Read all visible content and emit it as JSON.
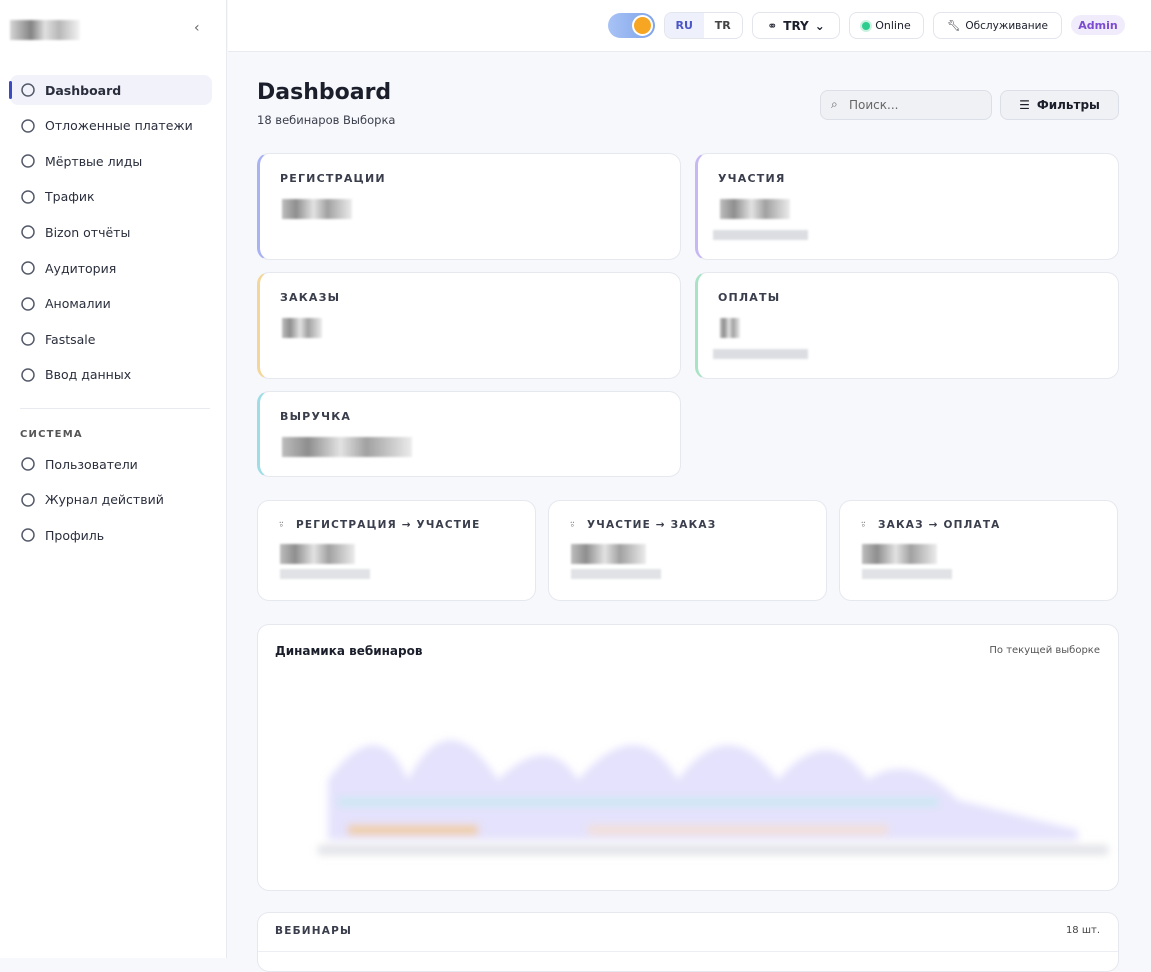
{
  "sidebar": {
    "nav": [
      "Dashboard",
      "Отложенные платежи",
      "Мёртвые лиды",
      "Трафик",
      "Bizon отчёты",
      "Аудитория",
      "Аномалии",
      "Fastsale",
      "Ввод данных"
    ],
    "section_title": "СИСТЕМА",
    "system_nav": [
      "Пользователи",
      "Журнал действий",
      "Профиль"
    ]
  },
  "topbar": {
    "languages": [
      "RU",
      "TR"
    ],
    "currency": "TRY",
    "status": "Online",
    "maintenance": "Обслуживание",
    "role": "Admin"
  },
  "header": {
    "title": "Dashboard",
    "subtitle": "18 вебинаров Выборка",
    "search_placeholder": "Поиск...",
    "filters": "Фильтры"
  },
  "metric_cards": [
    "РЕГИСТРАЦИИ",
    "УЧАСТИЯ",
    "ЗАКАЗЫ",
    "ОПЛАТЫ",
    "ВЫРУЧКА"
  ],
  "conversion_cards": [
    "РЕГИСТРАЦИЯ → УЧАСТИЕ",
    "УЧАСТИЕ → ЗАКАЗ",
    "ЗАКАЗ → ОПЛАТА"
  ],
  "chart_panel": {
    "title": "Динамика вебинаров",
    "note": "По текущей выборке"
  },
  "table": {
    "title": "ВЕБИНАРЫ",
    "count": "18 шт."
  }
}
